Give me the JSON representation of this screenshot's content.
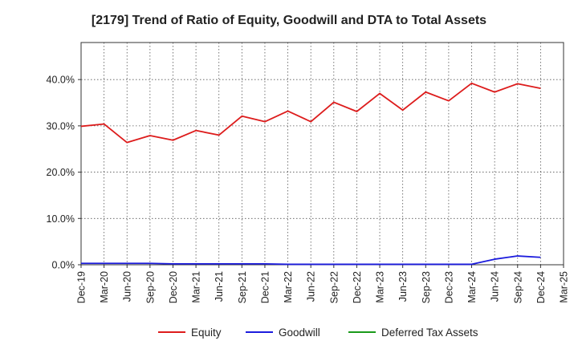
{
  "chart_data": {
    "type": "line",
    "title": "[2179]  Trend of Ratio of Equity, Goodwill and DTA to Total Assets",
    "xlabel": "",
    "ylabel": "",
    "ylim": [
      0,
      0.48
    ],
    "y_ticks": [
      0,
      0.1,
      0.2,
      0.3,
      0.4
    ],
    "y_tick_labels": [
      "0.0%",
      "10.0%",
      "20.0%",
      "30.0%",
      "40.0%"
    ],
    "grid": true,
    "legend_position": "bottom",
    "x": [
      "Dec-19",
      "Mar-20",
      "Jun-20",
      "Sep-20",
      "Dec-20",
      "Mar-21",
      "Jun-21",
      "Sep-21",
      "Dec-21",
      "Mar-22",
      "Jun-22",
      "Sep-22",
      "Dec-22",
      "Mar-23",
      "Jun-23",
      "Sep-23",
      "Dec-23",
      "Mar-24",
      "Jun-24",
      "Sep-24",
      "Dec-24",
      "Mar-25"
    ],
    "series": [
      {
        "name": "Equity",
        "color": "#dd1c1c",
        "values": [
          0.299,
          0.304,
          0.264,
          0.279,
          0.269,
          0.29,
          0.28,
          0.321,
          0.309,
          0.332,
          0.309,
          0.351,
          0.331,
          0.37,
          0.334,
          0.373,
          0.354,
          0.392,
          0.373,
          0.391,
          0.381,
          null
        ]
      },
      {
        "name": "Goodwill",
        "color": "#1c1cdd",
        "values": [
          0.003,
          0.003,
          0.003,
          0.003,
          0.002,
          0.002,
          0.002,
          0.002,
          0.002,
          0.001,
          0.001,
          0.001,
          0.001,
          0.001,
          0.001,
          0.001,
          0.001,
          0.001,
          0.012,
          0.019,
          0.016,
          null
        ]
      },
      {
        "name": "Deferred Tax Assets",
        "color": "#1a9a1a",
        "values": [
          null,
          null,
          null,
          null,
          null,
          null,
          null,
          null,
          null,
          null,
          null,
          null,
          null,
          null,
          null,
          null,
          null,
          null,
          null,
          null,
          null,
          null
        ]
      }
    ]
  }
}
